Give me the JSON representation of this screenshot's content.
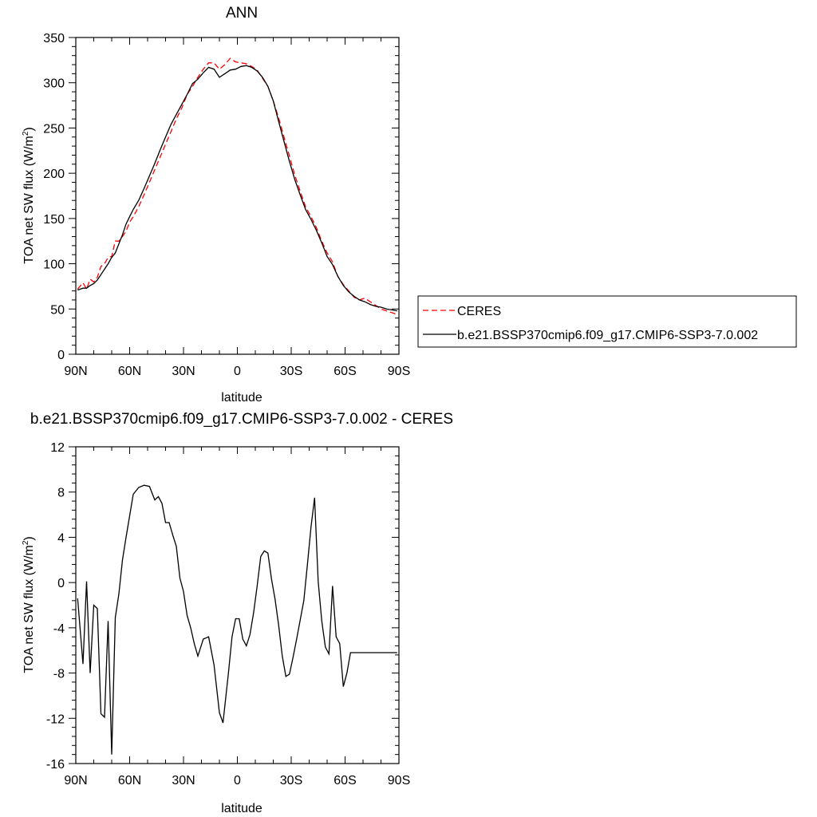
{
  "chart_data": [
    {
      "type": "line",
      "title": "ANN",
      "xlabel": "latitude",
      "ylabel_main": "TOA net SW flux (W/m",
      "ylabel_sup": "2",
      "ylabel_close": ")",
      "xlim": [
        90,
        -90
      ],
      "ylim": [
        0,
        350
      ],
      "xticks": [
        90,
        60,
        30,
        0,
        -30,
        -60,
        -90
      ],
      "xtick_labels": [
        "90N",
        "60N",
        "30N",
        "0",
        "30S",
        "60S",
        "90S"
      ],
      "yticks": [
        0,
        50,
        100,
        150,
        200,
        250,
        300,
        350
      ],
      "ytick_labels": [
        "0",
        "50",
        "100",
        "150",
        "200",
        "250",
        "300",
        "350"
      ],
      "legend_position": "right",
      "series": [
        {
          "name": "CERES",
          "color": "#ff0000",
          "dash": "dashed",
          "x": [
            89,
            86,
            84,
            82,
            80,
            78,
            76,
            74,
            72,
            70,
            68,
            66,
            64,
            62,
            60,
            58,
            55,
            52,
            49,
            46,
            43,
            40,
            37,
            34,
            31,
            28,
            25,
            22,
            19,
            16,
            13,
            10,
            7,
            4,
            1,
            -2,
            -5,
            -8,
            -11,
            -14,
            -17,
            -20,
            -23,
            -26,
            -29,
            -32,
            -35,
            -38,
            -41,
            -44,
            -47,
            -50,
            -53,
            -56,
            -59,
            -62,
            -65,
            -68,
            -71,
            -74,
            -77,
            -80,
            -83,
            -86,
            -89
          ],
          "y": [
            72,
            79,
            72,
            83,
            80,
            85,
            97,
            100,
            107,
            108,
            125,
            125,
            130,
            136,
            146,
            152,
            163,
            176,
            190,
            204,
            218,
            232,
            246,
            260,
            272,
            287,
            296,
            306,
            315,
            322,
            322,
            315,
            320,
            327,
            323,
            322,
            321,
            318,
            314,
            305,
            296,
            280,
            261,
            240,
            219,
            198,
            180,
            163,
            152,
            140,
            125,
            112,
            102,
            86,
            77,
            70,
            63,
            60,
            62,
            58,
            54,
            50,
            48,
            46,
            44
          ],
          "color_note": ""
        },
        {
          "name": "b.e21.BSSP370cmip6.f09_g17.CMIP6-SSP3-7.0.002",
          "color": "#000000",
          "dash": "solid",
          "x": [
            89,
            86,
            84,
            82,
            80,
            78,
            76,
            74,
            72,
            70,
            68,
            66,
            64,
            62,
            60,
            58,
            55,
            52,
            49,
            46,
            43,
            40,
            37,
            34,
            31,
            28,
            25,
            22,
            19,
            16,
            13,
            10,
            7,
            4,
            1,
            -2,
            -5,
            -8,
            -11,
            -14,
            -17,
            -20,
            -23,
            -26,
            -29,
            -32,
            -35,
            -38,
            -41,
            -44,
            -47,
            -50,
            -53,
            -56,
            -59,
            -62,
            -65,
            -68,
            -71,
            -74,
            -77,
            -80,
            -83,
            -86,
            -89
          ],
          "y": [
            71,
            73,
            73,
            76,
            78,
            82,
            88,
            94,
            100,
            107,
            112,
            122,
            132,
            144,
            152,
            160,
            170,
            183,
            197,
            211,
            226,
            240,
            254,
            265,
            276,
            287,
            299,
            304,
            311,
            317,
            315,
            306,
            310,
            314,
            315,
            318,
            319,
            317,
            313,
            306,
            296,
            280,
            257,
            235,
            213,
            193,
            176,
            160,
            149,
            137,
            123,
            108,
            99,
            86,
            76,
            69,
            64,
            60,
            58,
            55,
            53,
            52,
            50,
            49,
            48
          ]
        }
      ]
    },
    {
      "type": "line",
      "title": "b.e21.BSSP370cmip6.f09_g17.CMIP6-SSP3-7.0.002 - CERES",
      "xlabel": "latitude",
      "ylabel_main": "TOA net SW flux (W/m",
      "ylabel_sup": "2",
      "ylabel_close": ")",
      "xlim": [
        90,
        -90
      ],
      "ylim": [
        -16,
        12
      ],
      "xticks": [
        90,
        60,
        30,
        0,
        -30,
        -60,
        -90
      ],
      "xtick_labels": [
        "90N",
        "60N",
        "30N",
        "0",
        "30S",
        "60S",
        "90S"
      ],
      "yticks": [
        12,
        8,
        4,
        0,
        -4,
        -8,
        -12,
        -16
      ],
      "ytick_labels": [
        "12",
        "8",
        "4",
        "0",
        "-4",
        "-8",
        "-12",
        "-16"
      ],
      "series": [
        {
          "color": "#000000",
          "dash": "solid",
          "x": [
            89,
            86,
            84,
            82,
            80,
            78,
            76,
            74,
            72,
            70,
            68,
            66,
            64,
            62,
            60,
            58,
            55,
            52,
            49,
            46,
            44,
            42,
            40,
            38,
            36,
            34,
            32,
            30,
            28,
            26,
            24,
            22,
            19,
            16,
            13,
            10,
            8,
            5,
            3,
            1,
            -1,
            -3,
            -5,
            -7,
            -9,
            -11,
            -13,
            -15,
            -17,
            -19,
            -21,
            -23,
            -25,
            -27,
            -29,
            -31,
            -33,
            -35,
            -37,
            -39,
            -41,
            -43,
            -45,
            -47,
            -49,
            -51,
            -53,
            -55,
            -57,
            -59,
            -61,
            -63,
            -65,
            -67,
            -69,
            -71,
            -73,
            -75,
            -77,
            -79,
            -81,
            -83,
            -85,
            -87,
            -89
          ],
          "y": [
            -1.4,
            -7.2,
            0.1,
            -8.0,
            -2.0,
            -2.3,
            -11.6,
            -11.9,
            -3.4,
            -15.2,
            -3.1,
            -1.0,
            2.0,
            4.0,
            5.9,
            7.8,
            8.4,
            8.6,
            8.5,
            7.3,
            7.6,
            7.0,
            5.3,
            5.3,
            4.2,
            3.2,
            0.4,
            -0.8,
            -2.9,
            -4.0,
            -5.4,
            -6.5,
            -5.0,
            -4.8,
            -7.3,
            -11.5,
            -12.4,
            -8.0,
            -4.8,
            -3.2,
            -3.2,
            -5.0,
            -5.6,
            -4.6,
            -2.7,
            -0.3,
            2.3,
            2.8,
            2.6,
            0.3,
            -1.5,
            -3.8,
            -6.5,
            -8.3,
            -8.1,
            -6.6,
            -5.0,
            -3.3,
            -1.6,
            1.6,
            4.9,
            7.5,
            0.1,
            -3.4,
            -5.7,
            -6.3,
            -0.3,
            -4.8,
            -5.4,
            -9.2,
            -8.0,
            -6.2,
            -6.2,
            -6.2,
            -6.2,
            -6.2,
            -6.2,
            -6.2,
            -6.2,
            -6.2,
            -6.2,
            -6.2,
            -6.2,
            -6.2,
            -6.2
          ]
        }
      ]
    }
  ]
}
